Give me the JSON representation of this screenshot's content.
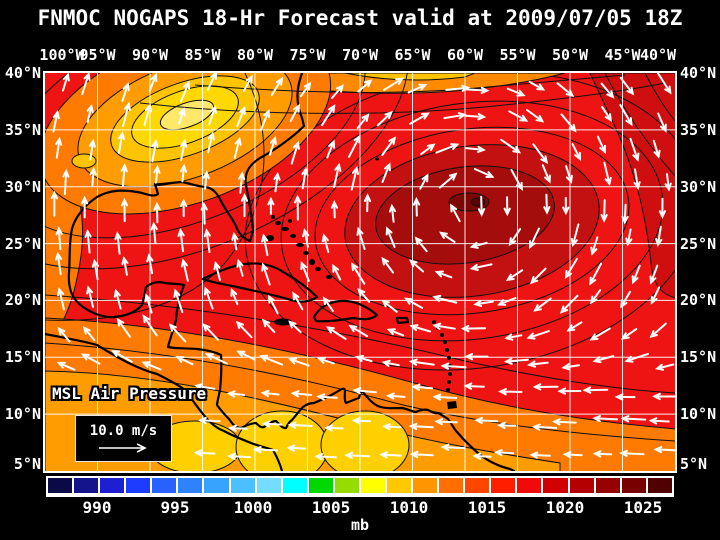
{
  "title": "FNMOC NOGAPS 18-Hr Forecast valid at 2009/07/05 18Z",
  "axes": {
    "lon_labels": [
      "100°W",
      "95°W",
      "90°W",
      "85°W",
      "80°W",
      "75°W",
      "70°W",
      "65°W",
      "60°W",
      "55°W",
      "50°W",
      "45°W",
      "40°W"
    ],
    "lat_labels": [
      "40°N",
      "35°N",
      "30°N",
      "25°N",
      "20°N",
      "15°N",
      "10°N",
      "5°N"
    ]
  },
  "overlay": {
    "field_label": "MSL Air Pressure",
    "wind_scale_label": "10.0 m/s"
  },
  "colorbar": {
    "unit": "mb",
    "tick_labels": [
      "990",
      "995",
      "1000",
      "1005",
      "1010",
      "1015",
      "1020",
      "1025"
    ],
    "cell_colors": [
      "#0a0a46",
      "#14148c",
      "#1e1ed2",
      "#1e3cff",
      "#2861ff",
      "#2e82ff",
      "#38a2ff",
      "#4cc0ff",
      "#73dcff",
      "#00ffff",
      "#00d800",
      "#96dc00",
      "#ffff00",
      "#ffc800",
      "#ff9600",
      "#ff6e00",
      "#ff4600",
      "#ff1e00",
      "#f00a0a",
      "#d20000",
      "#b40000",
      "#960000",
      "#780000",
      "#500000"
    ]
  },
  "chart_data": {
    "type": "heatmap",
    "title": "FNMOC NOGAPS 18-Hr Forecast valid at 2009/07/05 18Z",
    "field": "MSL Air Pressure",
    "unit": "mb",
    "lon_range": [
      "100°W",
      "40°W"
    ],
    "lat_range": [
      "5°N",
      "40°N"
    ],
    "grid_interval_deg": 5,
    "colorbar_ticks_mb": [
      990,
      995,
      1000,
      1005,
      1010,
      1015,
      1020,
      1025
    ],
    "wind_vector_scale_ms": 10.0,
    "features": [
      {
        "name": "subtropical high center",
        "approx_location": "60°W 27°N",
        "approx_pressure_mb": 1025
      },
      {
        "name": "inland low pressure trough",
        "approx_location": "88°W 35°N",
        "approx_pressure_mb": 1010
      },
      {
        "name": "ITCZ low pressure band",
        "approx_location": "82°W-63°W near 8°N",
        "approx_pressure_mb": 1010
      },
      {
        "name": "easterly trade winds",
        "approx_location": "south of 20°N"
      },
      {
        "name": "clockwise circulation around high",
        "approx_location": "central Atlantic"
      }
    ]
  }
}
